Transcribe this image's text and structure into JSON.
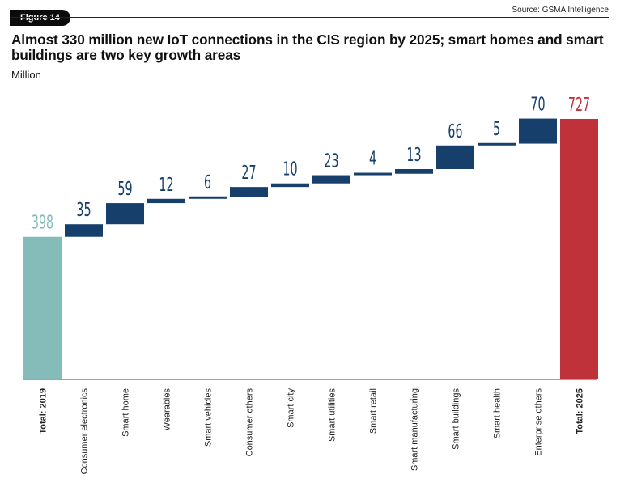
{
  "header": {
    "figure_label": "Figure 14",
    "source": "Source: GSMA Intelligence"
  },
  "title": "Almost 330 million new IoT connections in the CIS region by 2025; smart homes and smart buildings are two key growth areas",
  "unit": "Million",
  "colors": {
    "total_2019": "#85bbb8",
    "increment": "#173f6c",
    "total_2025": "#c0323a",
    "label_2019": "#85bbb8",
    "label_increment": "#173f6c",
    "label_2025": "#c0323a"
  },
  "chart_data": {
    "type": "waterfall",
    "title": "Almost 330 million new IoT connections in the CIS region by 2025; smart homes and smart buildings are two key growth areas",
    "ylabel": "Million",
    "categories": [
      "Total: 2019",
      "Consumer electronics",
      "Smart home",
      "Wearables",
      "Smart vehicles",
      "Consumer others",
      "Smart city",
      "Smart utilities",
      "Smart retail",
      "Smart manufacturing",
      "Smart buildings",
      "Smart health",
      "Enterprise others",
      "Total: 2025"
    ],
    "values": [
      398,
      35,
      59,
      12,
      6,
      27,
      10,
      23,
      4,
      13,
      66,
      5,
      70,
      727
    ],
    "kinds": [
      "total",
      "increment",
      "increment",
      "increment",
      "increment",
      "increment",
      "increment",
      "increment",
      "increment",
      "increment",
      "increment",
      "increment",
      "increment",
      "total"
    ],
    "ylim": [
      0,
      727
    ],
    "grid": false,
    "legend": "none"
  }
}
